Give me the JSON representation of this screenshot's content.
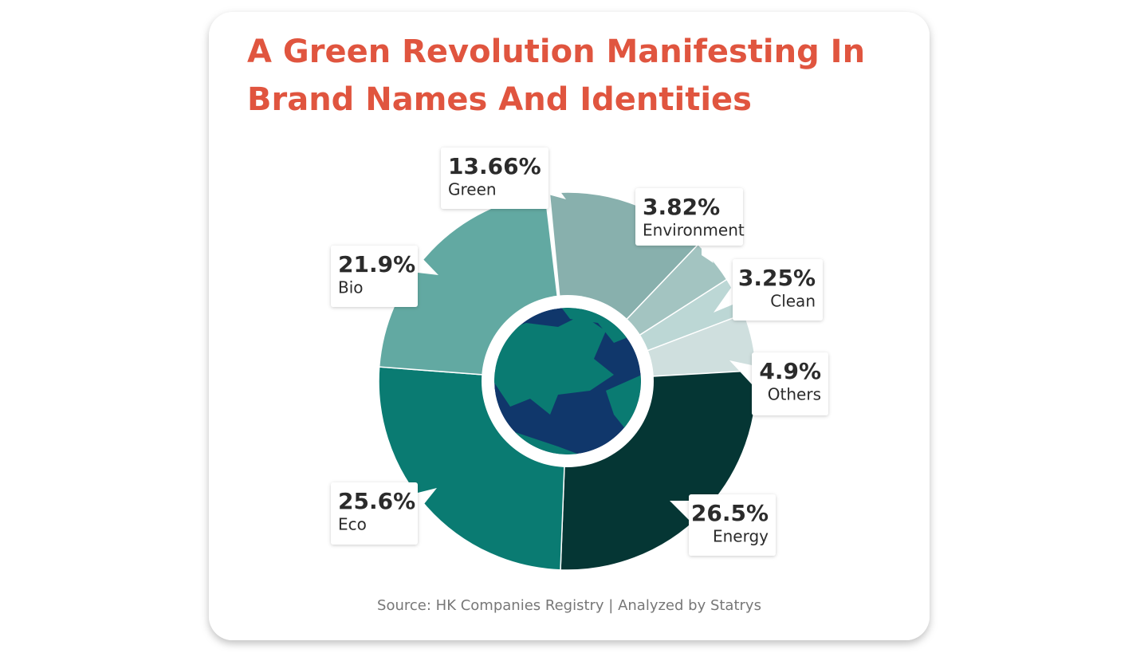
{
  "chart_data": {
    "type": "pie",
    "title": "A Green Revolution Manifesting In Brand Names And Identities",
    "title_lines": [
      "A Green Revolution Manifesting In",
      "Brand Names And Identities"
    ],
    "categories": [
      "Green",
      "Environment",
      "Clean",
      "Others",
      "Energy",
      "Eco",
      "Bio"
    ],
    "values": [
      13.66,
      3.82,
      3.25,
      4.9,
      26.5,
      25.6,
      21.9
    ],
    "value_labels": [
      "13.66%",
      "3.82%",
      "3.25%",
      "4.9%",
      "26.5%",
      "25.6%",
      "21.9%"
    ],
    "colors": [
      "#88b0ad",
      "#a3c4c1",
      "#bcd7d5",
      "#cfdfde",
      "#053634",
      "#0a7b72",
      "#62a9a2"
    ],
    "source": "Source: HK Companies Registry | Analyzed by Statrys"
  }
}
